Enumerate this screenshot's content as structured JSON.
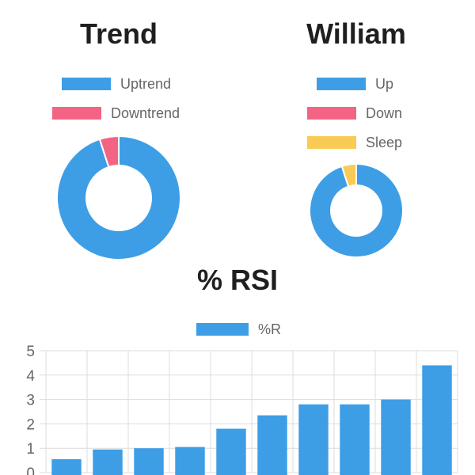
{
  "chart_data": [
    {
      "type": "pie",
      "variant": "doughnut",
      "title": "Trend",
      "categories": [
        "Uptrend",
        "Downtrend"
      ],
      "values": [
        95,
        5
      ],
      "colors": [
        "#3d9ee6",
        "#f36484"
      ],
      "legend": "top"
    },
    {
      "type": "pie",
      "variant": "doughnut",
      "title": "William",
      "categories": [
        "Up",
        "Down",
        "Sleep"
      ],
      "values": [
        95,
        0,
        5
      ],
      "colors": [
        "#3d9ee6",
        "#f36484",
        "#f9cb55"
      ],
      "legend": "top"
    },
    {
      "type": "bar",
      "title": "% RSI",
      "categories": [
        "",
        "",
        "",
        "",
        "",
        "",
        "",
        "",
        "",
        ""
      ],
      "series": [
        {
          "name": "%R",
          "values": [
            0.55,
            0.95,
            1.0,
            1.05,
            1.8,
            2.35,
            2.8,
            2.8,
            3.0,
            4.4
          ],
          "color": "#3d9ee6"
        }
      ],
      "ylim": [
        0,
        5
      ],
      "yticks": [
        "5",
        "4",
        "3",
        "2",
        "1",
        "0"
      ],
      "grid": true,
      "legend": "top"
    }
  ]
}
